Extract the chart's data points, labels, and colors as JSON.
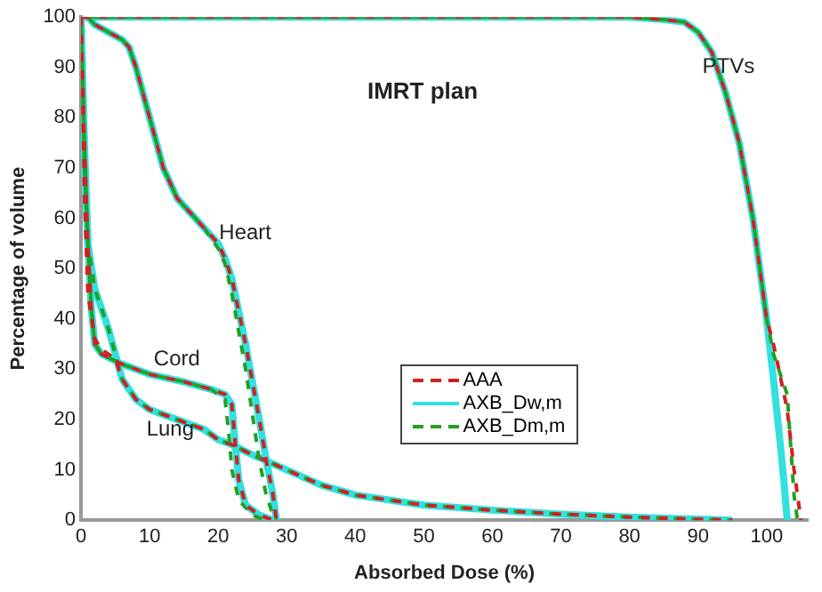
{
  "chart_data": {
    "type": "line",
    "title": "IMRT plan",
    "xlabel": "Absorbed Dose (%)",
    "ylabel": "Percentage of volume",
    "xlim": [
      0,
      106
    ],
    "ylim": [
      0,
      100
    ],
    "xticks": [
      0,
      10,
      20,
      30,
      40,
      50,
      60,
      70,
      80,
      90,
      100
    ],
    "yticks": [
      0,
      10,
      20,
      30,
      40,
      50,
      60,
      70,
      80,
      90,
      100
    ],
    "grid": false,
    "legend": "right",
    "marker": "none",
    "annotations": [
      "Heart",
      "Cord",
      "Lung",
      "PTVs"
    ],
    "series": [
      {
        "name": "AAA",
        "color": "#d02020",
        "line_style": "dashed",
        "x": [
          0,
          1,
          2,
          4,
          6,
          7,
          8,
          9,
          10,
          12,
          14,
          16,
          18,
          20,
          21,
          22,
          24,
          26,
          27,
          28,
          28.5
        ],
        "values": [
          100,
          100,
          98.5,
          97,
          95.5,
          94,
          90,
          85,
          80,
          70,
          64,
          61,
          58,
          55,
          52,
          48,
          35,
          20,
          12,
          5,
          0
        ]
      },
      {
        "name": "AXB_Dw,m",
        "color": "#33e0e0",
        "line_style": "solid",
        "x": [
          0,
          1,
          2,
          4,
          6,
          7,
          8,
          9,
          10,
          12,
          14,
          16,
          18,
          20,
          21,
          22,
          24,
          26,
          27,
          28,
          28.5
        ],
        "values": [
          100,
          100,
          98.5,
          97,
          95.5,
          94,
          90,
          85,
          80,
          70,
          64,
          61,
          58,
          55,
          52,
          48,
          35,
          20,
          12,
          5,
          0
        ]
      },
      {
        "name": "AXB_Dm,m",
        "color": "#22a022",
        "line_style": "dashed",
        "x": [
          0,
          1,
          2,
          4,
          6,
          7,
          8,
          9,
          10,
          12,
          14,
          16,
          18,
          20,
          21,
          22,
          24,
          26,
          27,
          28,
          28.5
        ],
        "values": [
          100,
          100,
          98.5,
          97,
          95.5,
          94,
          90,
          85,
          80,
          70,
          64,
          61,
          58,
          54,
          51,
          45,
          30,
          12,
          5,
          1,
          0
        ]
      },
      {
        "color": "#d02020",
        "line_style": "dashed",
        "x": [
          0,
          0.5,
          1,
          1.5,
          2,
          3,
          6,
          10,
          15,
          19,
          21,
          22,
          22.5,
          23,
          24,
          26,
          28
        ],
        "values": [
          100,
          75,
          55,
          42,
          35,
          33,
          31,
          29,
          27.5,
          26,
          25,
          23,
          15,
          8,
          3,
          1,
          0
        ]
      },
      {
        "color": "#33e0e0",
        "line_style": "solid",
        "x": [
          0,
          0.5,
          1,
          1.5,
          2,
          3,
          6,
          10,
          15,
          19,
          21,
          22,
          22.5,
          23,
          24,
          26,
          28
        ],
        "values": [
          100,
          75,
          55,
          42,
          35,
          33,
          31,
          29,
          27.5,
          26,
          25,
          23,
          15,
          8,
          3,
          1,
          0
        ]
      },
      {
        "color": "#22a022",
        "line_style": "dashed",
        "x": [
          0,
          0.5,
          1,
          1.5,
          2,
          3,
          6,
          10,
          15,
          19,
          21,
          21.5,
          22,
          23,
          25,
          27
        ],
        "values": [
          100,
          75,
          55,
          42,
          35,
          33,
          31,
          29,
          27.5,
          26,
          24,
          18,
          10,
          4,
          1,
          0
        ]
      },
      {
        "color": "#d02020",
        "line_style": "dashed",
        "x": [
          0,
          0.5,
          1,
          2,
          3,
          5,
          6,
          8,
          10,
          14,
          18,
          20,
          22,
          25,
          30,
          35,
          40,
          50,
          60,
          70,
          80,
          90,
          95
        ],
        "values": [
          100,
          65,
          45,
          36,
          34,
          32,
          28,
          24,
          22,
          20,
          18,
          16,
          15,
          13,
          10,
          7,
          5,
          3,
          2,
          1.2,
          0.6,
          0.2,
          0
        ]
      },
      {
        "color": "#33e0e0",
        "line_style": "solid",
        "x": [
          0,
          0.5,
          1,
          2,
          3,
          4,
          5,
          6,
          8,
          10,
          14,
          18,
          20,
          22,
          25,
          30,
          35,
          40,
          50,
          60,
          70,
          80,
          90,
          95
        ],
        "values": [
          100,
          70,
          55,
          46,
          42,
          38,
          33,
          28,
          24,
          22,
          20,
          18,
          16,
          15,
          13,
          10,
          7,
          5,
          3,
          2,
          1.2,
          0.6,
          0.2,
          0
        ]
      },
      {
        "color": "#22a022",
        "line_style": "dashed",
        "x": [
          0,
          0.5,
          1,
          2,
          3,
          4,
          5,
          6,
          8,
          10,
          14,
          18,
          20,
          22,
          25,
          30,
          35,
          40,
          50,
          60,
          70,
          80,
          90,
          95
        ],
        "values": [
          100,
          70,
          55,
          46,
          42,
          38,
          33,
          28,
          24,
          22,
          20,
          18,
          16,
          15,
          13,
          10,
          7,
          5,
          3,
          2,
          1.2,
          0.6,
          0.2,
          0
        ]
      },
      {
        "color": "#d02020",
        "line_style": "dashed",
        "x": [
          0,
          80,
          85,
          88,
          90,
          92,
          94,
          96,
          98,
          100,
          101,
          103,
          104,
          105
        ],
        "values": [
          100,
          100,
          99.5,
          99,
          97,
          93,
          85,
          75,
          60,
          40,
          35,
          22,
          10,
          0
        ]
      },
      {
        "color": "#33e0e0",
        "line_style": "solid",
        "x": [
          0,
          80,
          85,
          88,
          90,
          92,
          94,
          96,
          98,
          100,
          101,
          102,
          102.5,
          103
        ],
        "values": [
          100,
          100,
          99.5,
          99,
          97,
          93,
          85,
          75,
          60,
          40,
          28,
          15,
          8,
          0
        ]
      },
      {
        "color": "#22a022",
        "line_style": "dashed",
        "x": [
          0,
          80,
          85,
          88,
          90,
          92,
          94,
          96,
          98,
          100,
          101,
          103,
          104,
          104.5
        ],
        "values": [
          100,
          100,
          99.5,
          99,
          97,
          93,
          85,
          75,
          60,
          40,
          33,
          25,
          5,
          0
        ]
      }
    ]
  }
}
